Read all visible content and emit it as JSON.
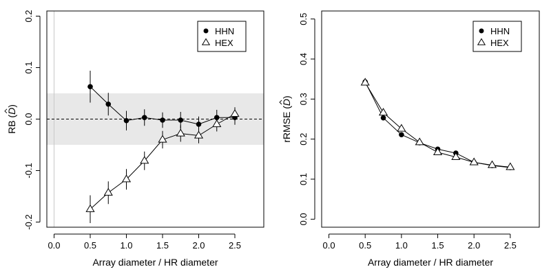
{
  "chart_data": [
    {
      "type": "line",
      "xlabel": "Array diameter / HR diameter",
      "ylabel": "RB",
      "ylabel_hat_symbol": "D",
      "xlim": [
        -0.1,
        2.9
      ],
      "ylim": [
        -0.21,
        0.21
      ],
      "x_ticks": [
        "0.0",
        "0.5",
        "1.0",
        "1.5",
        "2.0",
        "2.5"
      ],
      "y_ticks": [
        "-0.2",
        "-0.1",
        "0.0",
        "0.1",
        "0.2"
      ],
      "shaded_band": [
        -0.05,
        0.05
      ],
      "reference_line": 0.0,
      "vertical_line_at_x": 0.0,
      "legend_position": "top-right",
      "grid": false,
      "series": [
        {
          "name": "HHN",
          "marker": "filled-circle",
          "x": [
            0.5,
            0.75,
            1.0,
            1.25,
            1.5,
            1.75,
            2.0,
            2.25,
            2.5
          ],
          "y": [
            0.063,
            0.029,
            -0.003,
            0.003,
            -0.002,
            -0.002,
            -0.01,
            0.003,
            0.003
          ],
          "error": [
            0.031,
            0.022,
            0.019,
            0.016,
            0.015,
            0.016,
            0.015,
            0.015,
            0.014
          ]
        },
        {
          "name": "HEX",
          "marker": "open-triangle",
          "x": [
            0.5,
            0.75,
            1.0,
            1.25,
            1.5,
            1.75,
            2.0,
            2.25,
            2.5
          ],
          "y": [
            -0.175,
            -0.143,
            -0.117,
            -0.081,
            -0.04,
            -0.028,
            -0.032,
            -0.01,
            0.01
          ],
          "error": [
            0.027,
            0.022,
            0.02,
            0.018,
            0.017,
            0.016,
            0.015,
            0.014,
            0.013
          ]
        }
      ]
    },
    {
      "type": "line",
      "xlabel": "Array diameter / HR diameter",
      "ylabel": "rRMSE",
      "ylabel_hat_symbol": "D",
      "xlim": [
        -0.1,
        2.9
      ],
      "ylim": [
        -0.02,
        0.52
      ],
      "x_ticks": [
        "0.0",
        "0.5",
        "1.0",
        "1.5",
        "2.0",
        "2.5"
      ],
      "y_ticks": [
        "0.0",
        "0.1",
        "0.2",
        "0.3",
        "0.4",
        "0.5"
      ],
      "legend_position": "top-right",
      "grid": false,
      "series": [
        {
          "name": "HHN",
          "marker": "filled-circle",
          "x": [
            0.5,
            0.75,
            1.0,
            1.25,
            1.5,
            1.75,
            2.0,
            2.25,
            2.5
          ],
          "y": [
            0.343,
            0.253,
            0.211,
            0.191,
            0.175,
            0.165,
            0.142,
            0.134,
            0.129
          ]
        },
        {
          "name": "HEX",
          "marker": "open-triangle",
          "x": [
            0.5,
            0.75,
            1.0,
            1.25,
            1.5,
            1.75,
            2.0,
            2.25,
            2.5
          ],
          "y": [
            0.341,
            0.266,
            0.226,
            0.192,
            0.167,
            0.155,
            0.142,
            0.135,
            0.13
          ]
        }
      ]
    }
  ]
}
